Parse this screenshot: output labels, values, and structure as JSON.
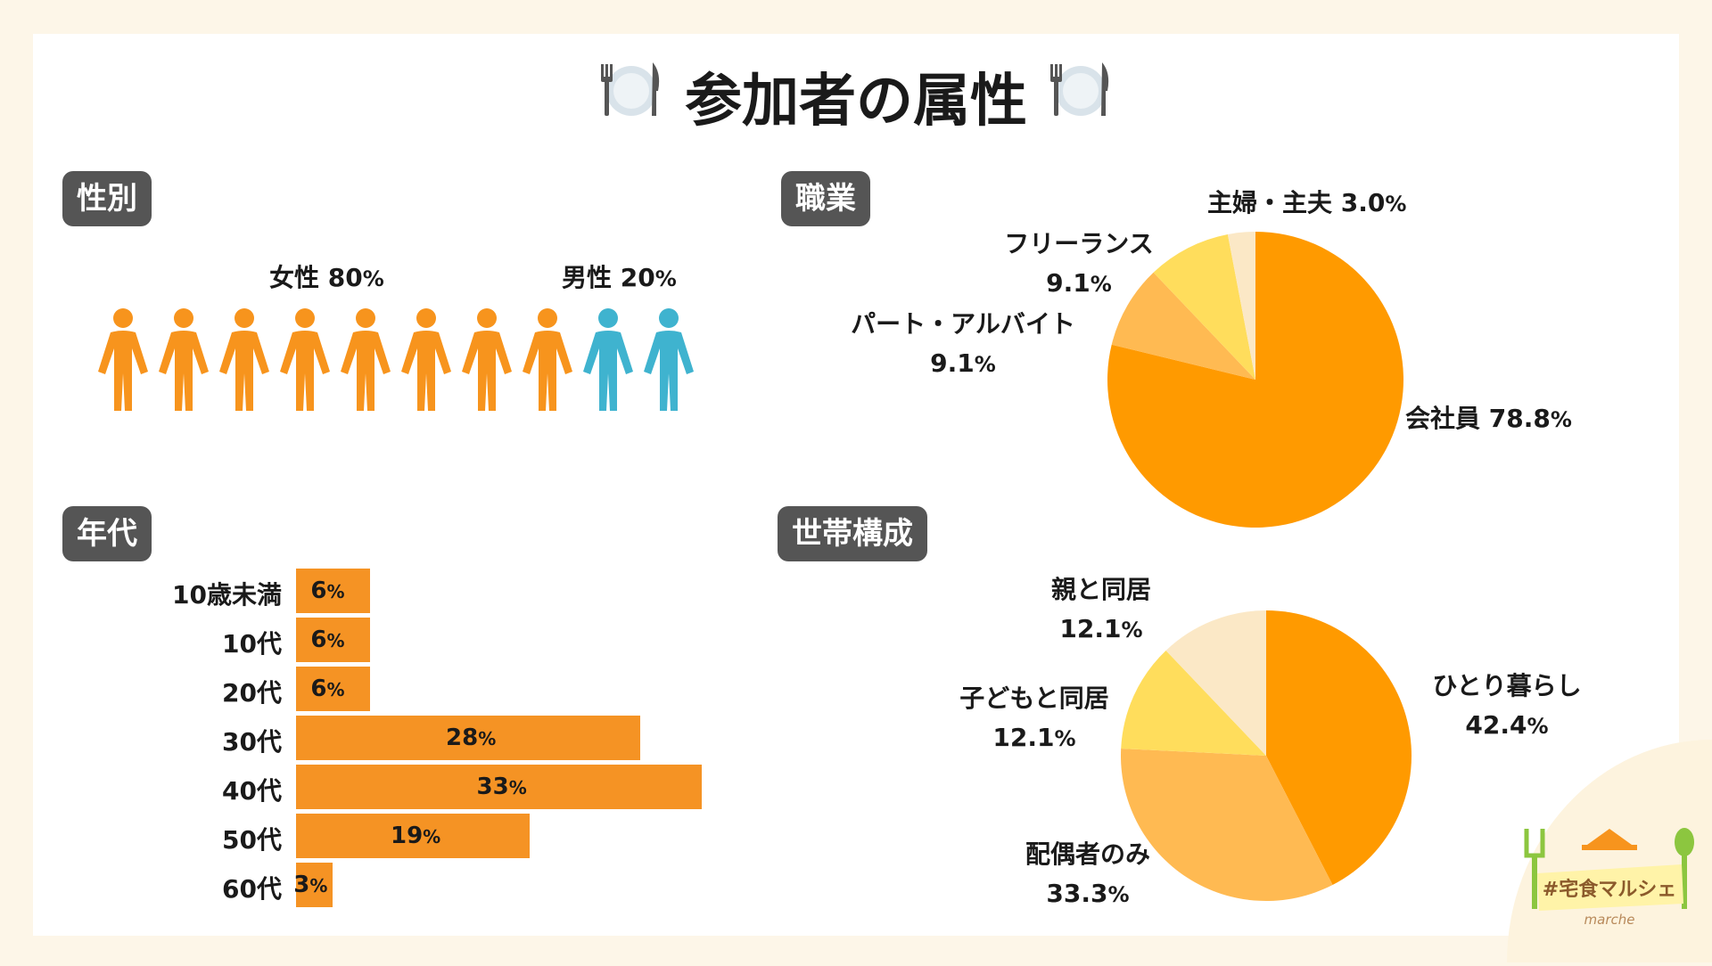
{
  "title": "参加者の属性",
  "colors": {
    "female": "#f7941d",
    "male": "#3fb3cf",
    "bar": "#f59324"
  },
  "icons": {
    "title": "fork-knife-plate-icon",
    "person": "person-icon"
  },
  "sections": {
    "gender": "性別",
    "job": "職業",
    "age": "年代",
    "household": "世帯構成"
  },
  "gender": {
    "female_label": "女性 80",
    "male_label": "男性 20",
    "pct": "%",
    "female_count": 8,
    "male_count": 2
  },
  "logo": {
    "text": "#宅食マルシェ",
    "sub": "marche"
  },
  "chart_data": [
    {
      "type": "pie",
      "title": "職業",
      "slices": [
        {
          "label": "会社員",
          "value": 78.8,
          "value_text": "78.8",
          "color": "#ff9a00"
        },
        {
          "label": "パート・アルバイト",
          "value": 9.1,
          "value_text": "9.1",
          "color": "#ffba52"
        },
        {
          "label": "フリーランス",
          "value": 9.1,
          "value_text": "9.1",
          "color": "#ffdd5c"
        },
        {
          "label": "主婦・主夫",
          "value": 3.0,
          "value_text": "3.0",
          "color": "#fbe8c6"
        }
      ],
      "unit": "%"
    },
    {
      "type": "bar",
      "title": "年代",
      "orientation": "horizontal",
      "categories": [
        "10歳未満",
        "10代",
        "20代",
        "30代",
        "40代",
        "50代",
        "60代"
      ],
      "values": [
        6,
        6,
        6,
        28,
        33,
        19,
        3
      ],
      "unit": "%",
      "xlim": [
        0,
        33
      ]
    },
    {
      "type": "pie",
      "title": "世帯構成",
      "slices": [
        {
          "label": "ひとり暮らし",
          "value": 42.4,
          "value_text": "42.4",
          "color": "#ff9a00"
        },
        {
          "label": "配偶者のみ",
          "value": 33.3,
          "value_text": "33.3",
          "color": "#ffba52"
        },
        {
          "label": "子どもと同居",
          "value": 12.1,
          "value_text": "12.1",
          "color": "#ffdd5c"
        },
        {
          "label": "親と同居",
          "value": 12.1,
          "value_text": "12.1",
          "color": "#fbe8c6"
        }
      ],
      "unit": "%"
    }
  ]
}
